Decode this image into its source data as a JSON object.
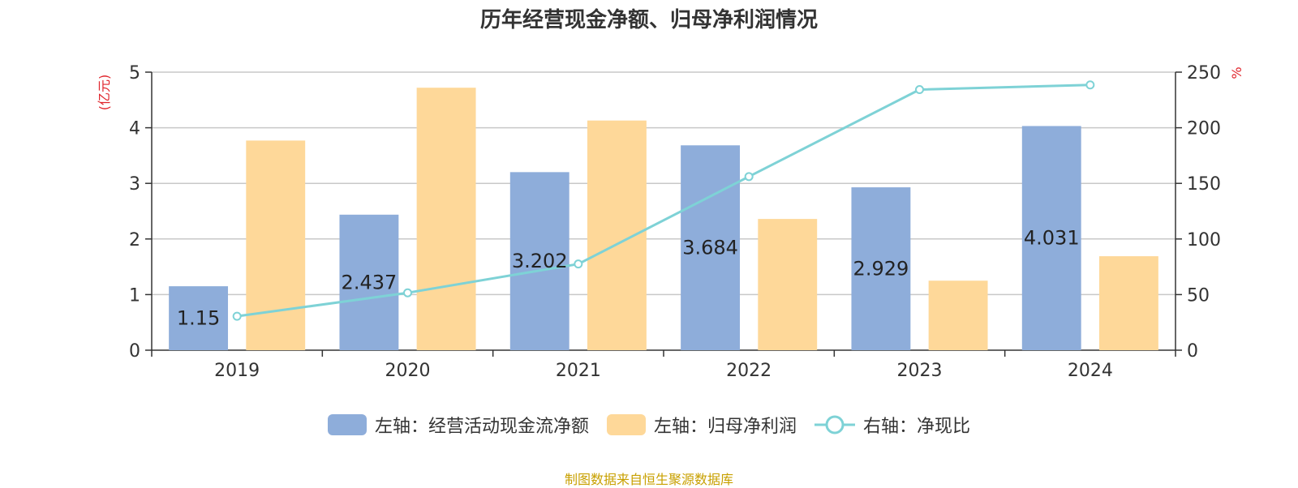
{
  "title": "历年经营现金净额、归母净利润情况",
  "source": "制图数据来自恒生聚源数据库",
  "colors": {
    "cash": "#8EADDA",
    "profit": "#FED899",
    "ratio": "#7ED2D6",
    "axis": "#333333",
    "grid": "#C8C8C8",
    "unit": "#E0242B"
  },
  "legend": {
    "cash_label": "左轴：经营活动现金流净额",
    "profit_label": "左轴：归母净利润",
    "ratio_label": "右轴：净现比"
  },
  "chart_data": {
    "type": "bar",
    "title": "历年经营现金净额、归母净利润情况",
    "categories": [
      "2019",
      "2020",
      "2021",
      "2022",
      "2023",
      "2024"
    ],
    "y_left": {
      "unit": "(亿元)",
      "range": [
        0,
        5
      ],
      "ticks": [
        "0",
        "1",
        "2",
        "3",
        "4",
        "5"
      ]
    },
    "y_right": {
      "unit": "%",
      "range": [
        0,
        250
      ],
      "ticks": [
        "0",
        "50",
        "100",
        "150",
        "200",
        "250"
      ]
    },
    "grid": true,
    "legend_position": "bottom",
    "series": [
      {
        "name": "左轴：经营活动现金流净额",
        "type": "bar",
        "axis": "left",
        "values": [
          1.15,
          2.437,
          3.202,
          3.684,
          2.929,
          4.031
        ],
        "labels": [
          "1.15",
          "2.437",
          "3.202",
          "3.684",
          "2.929",
          "4.031"
        ]
      },
      {
        "name": "左轴：归母净利润",
        "type": "bar",
        "axis": "left",
        "values": [
          3.77,
          4.72,
          4.13,
          2.36,
          1.25,
          1.69
        ]
      },
      {
        "name": "右轴：净现比",
        "type": "line",
        "axis": "right",
        "values": [
          30.5,
          51.6,
          77.5,
          156.1,
          234.3,
          238.5
        ]
      }
    ]
  }
}
